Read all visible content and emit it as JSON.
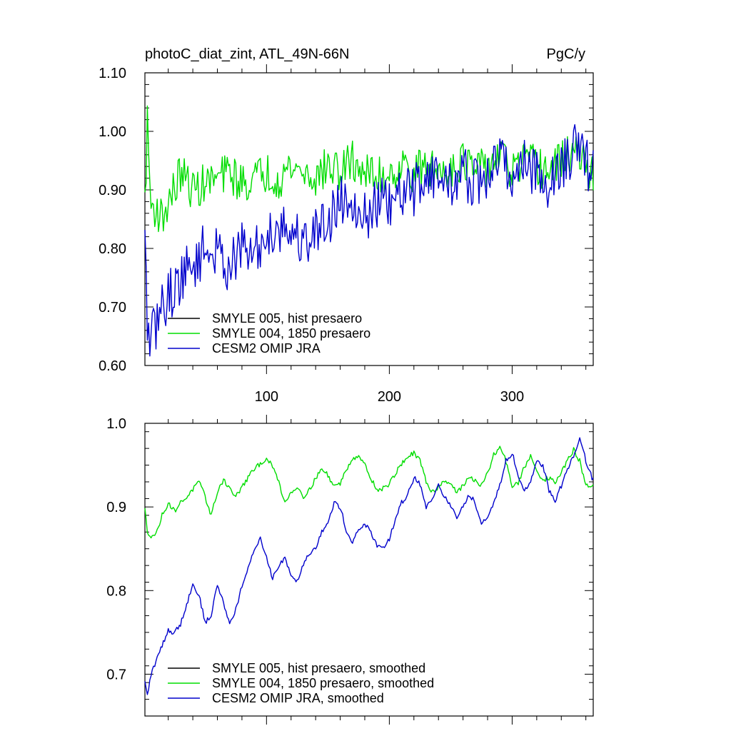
{
  "chart_data": [
    {
      "type": "line",
      "title": "photoC_diat_zint, ATL_49N-66N",
      "units": "PgC/y",
      "xlabel": "",
      "ylabel": "",
      "xlim": [
        1,
        366
      ],
      "ylim": [
        0.6,
        1.1
      ],
      "x_ticks": [
        100,
        200,
        300
      ],
      "x_tick_labels": [
        "100",
        "200",
        "300"
      ],
      "y_ticks": [
        0.6,
        0.7,
        0.8,
        0.9,
        1.0,
        1.1
      ],
      "y_tick_labels": [
        "0.60",
        "0.70",
        "0.80",
        "0.90",
        "1.00",
        "1.10"
      ],
      "legend_position": "bottom-left",
      "legend": [
        "SMYLE 005, hist presaero",
        "SMYLE 004, 1850 presaero",
        "CESM2 OMIP JRA"
      ],
      "series": [
        {
          "name": "SMYLE 005, hist presaero",
          "color": "#000000",
          "x": [
            1,
            366
          ],
          "values": [
            0.9,
            0.9
          ],
          "hidden": true
        },
        {
          "name": "SMYLE 004, 1850 presaero",
          "color": "#00dd00",
          "x": [
            1,
            3,
            6,
            10,
            15,
            20,
            25,
            30,
            40,
            50,
            60,
            70,
            80,
            90,
            100,
            110,
            120,
            130,
            140,
            150,
            160,
            170,
            180,
            190,
            200,
            210,
            220,
            230,
            240,
            250,
            260,
            270,
            280,
            290,
            300,
            310,
            320,
            330,
            340,
            350,
            360,
            366
          ],
          "values": [
            0.88,
            1.01,
            0.87,
            0.87,
            0.85,
            0.88,
            0.9,
            0.93,
            0.9,
            0.91,
            0.92,
            0.93,
            0.91,
            0.92,
            0.93,
            0.92,
            0.94,
            0.93,
            0.92,
            0.94,
            0.93,
            0.95,
            0.93,
            0.92,
            0.93,
            0.94,
            0.93,
            0.94,
            0.93,
            0.94,
            0.95,
            0.93,
            0.94,
            0.96,
            0.93,
            0.95,
            0.94,
            0.93,
            0.95,
            0.97,
            0.94,
            0.92
          ],
          "noise": 0.035
        },
        {
          "name": "CESM2 OMIP JRA",
          "color": "#0000cc",
          "x": [
            1,
            3,
            6,
            10,
            15,
            20,
            25,
            30,
            40,
            50,
            60,
            70,
            80,
            90,
            100,
            110,
            120,
            130,
            140,
            150,
            160,
            170,
            180,
            190,
            200,
            210,
            220,
            230,
            240,
            250,
            260,
            270,
            280,
            290,
            300,
            310,
            320,
            330,
            340,
            350,
            360,
            366
          ],
          "values": [
            0.81,
            0.67,
            0.64,
            0.67,
            0.7,
            0.72,
            0.73,
            0.75,
            0.77,
            0.8,
            0.79,
            0.77,
            0.8,
            0.79,
            0.82,
            0.84,
            0.83,
            0.81,
            0.83,
            0.85,
            0.88,
            0.89,
            0.85,
            0.88,
            0.87,
            0.89,
            0.9,
            0.93,
            0.92,
            0.91,
            0.93,
            0.91,
            0.92,
            0.96,
            0.92,
            0.95,
            0.93,
            0.91,
            0.94,
            0.97,
            0.95,
            0.93
          ],
          "noise": 0.045
        }
      ]
    },
    {
      "type": "line",
      "title": "",
      "xlabel": "",
      "ylabel": "",
      "xlim": [
        1,
        366
      ],
      "ylim": [
        0.65,
        1.0
      ],
      "x_ticks": [
        100,
        200,
        300
      ],
      "x_tick_labels": [],
      "y_ticks": [
        0.7,
        0.8,
        0.9,
        1.0
      ],
      "y_tick_labels": [
        "0.7",
        "0.8",
        "0.9",
        "1.0"
      ],
      "legend_position": "bottom-left",
      "legend": [
        "SMYLE 005, hist presaero, smoothed",
        "SMYLE 004, 1850 presaero, smoothed",
        "CESM2 OMIP JRA, smoothed"
      ],
      "series": [
        {
          "name": "SMYLE 005, hist presaero, smoothed",
          "color": "#000000",
          "x": [
            1,
            366
          ],
          "values": [
            0.9,
            0.9
          ],
          "hidden": true
        },
        {
          "name": "SMYLE 004, 1850 presaero, smoothed",
          "color": "#00dd00",
          "x": [
            1,
            3,
            6,
            10,
            15,
            20,
            25,
            30,
            35,
            40,
            45,
            50,
            55,
            60,
            65,
            70,
            75,
            80,
            85,
            90,
            95,
            100,
            105,
            110,
            115,
            120,
            125,
            130,
            135,
            140,
            145,
            150,
            155,
            160,
            165,
            170,
            175,
            180,
            185,
            190,
            195,
            200,
            205,
            210,
            215,
            220,
            225,
            230,
            235,
            240,
            245,
            250,
            255,
            260,
            265,
            270,
            275,
            280,
            285,
            290,
            295,
            300,
            305,
            310,
            315,
            320,
            325,
            330,
            335,
            340,
            345,
            350,
            355,
            360,
            365
          ],
          "values": [
            0.897,
            0.87,
            0.866,
            0.867,
            0.89,
            0.905,
            0.895,
            0.905,
            0.912,
            0.921,
            0.93,
            0.912,
            0.89,
            0.918,
            0.933,
            0.922,
            0.912,
            0.924,
            0.935,
            0.945,
            0.952,
            0.958,
            0.948,
            0.93,
            0.905,
            0.918,
            0.924,
            0.913,
            0.92,
            0.935,
            0.945,
            0.938,
            0.925,
            0.928,
            0.945,
            0.958,
            0.962,
            0.95,
            0.935,
            0.92,
            0.922,
            0.928,
            0.94,
            0.952,
            0.96,
            0.964,
            0.955,
            0.93,
            0.918,
            0.924,
            0.932,
            0.928,
            0.918,
            0.925,
            0.935,
            0.932,
            0.925,
            0.94,
            0.962,
            0.972,
            0.955,
            0.925,
            0.928,
            0.948,
            0.96,
            0.945,
            0.932,
            0.935,
            0.928,
            0.942,
            0.955,
            0.968,
            0.955,
            0.925,
            0.925
          ]
        },
        {
          "name": "CESM2 OMIP JRA, smoothed",
          "color": "#0000cc",
          "x": [
            1,
            3,
            6,
            10,
            15,
            20,
            25,
            30,
            35,
            40,
            45,
            50,
            55,
            60,
            65,
            70,
            75,
            80,
            85,
            90,
            95,
            100,
            105,
            110,
            115,
            120,
            125,
            130,
            135,
            140,
            145,
            150,
            155,
            160,
            165,
            170,
            175,
            180,
            185,
            190,
            195,
            200,
            205,
            210,
            215,
            220,
            225,
            230,
            235,
            240,
            245,
            250,
            255,
            260,
            265,
            270,
            275,
            280,
            285,
            290,
            295,
            300,
            305,
            310,
            315,
            320,
            325,
            330,
            335,
            340,
            345,
            350,
            355,
            360,
            365
          ],
          "values": [
            0.69,
            0.675,
            0.7,
            0.715,
            0.735,
            0.752,
            0.75,
            0.76,
            0.784,
            0.807,
            0.795,
            0.762,
            0.77,
            0.808,
            0.785,
            0.76,
            0.778,
            0.805,
            0.825,
            0.85,
            0.862,
            0.84,
            0.815,
            0.83,
            0.84,
            0.818,
            0.812,
            0.832,
            0.845,
            0.852,
            0.87,
            0.88,
            0.905,
            0.9,
            0.872,
            0.858,
            0.872,
            0.88,
            0.87,
            0.852,
            0.85,
            0.862,
            0.885,
            0.905,
            0.915,
            0.935,
            0.928,
            0.9,
            0.908,
            0.928,
            0.912,
            0.9,
            0.888,
            0.9,
            0.915,
            0.905,
            0.88,
            0.89,
            0.905,
            0.925,
            0.955,
            0.965,
            0.935,
            0.92,
            0.93,
            0.955,
            0.95,
            0.92,
            0.908,
            0.925,
            0.945,
            0.96,
            0.985,
            0.955,
            0.935
          ]
        }
      ]
    }
  ]
}
